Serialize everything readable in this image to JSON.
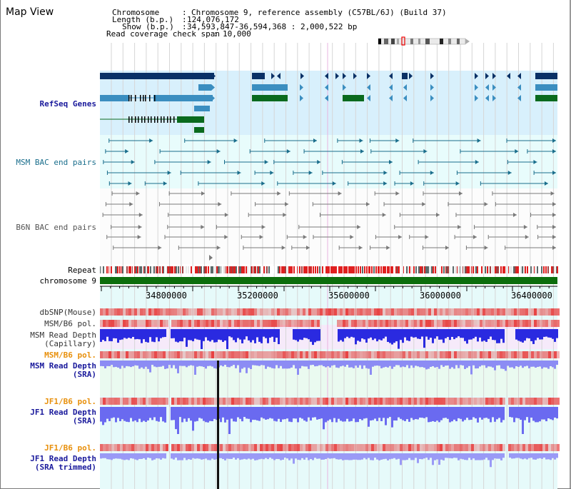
{
  "window": {
    "title": "Map View"
  },
  "info": {
    "chromosome_key": "Chromosome",
    "chromosome_val": "Chromosome 9, reference assembly (C57BL/6J) (Build 37)",
    "length_key": "Length (b.p.)",
    "length_val": "124,076,172",
    "show_key": "Show (b.p.)",
    "show_val": "34,593,847-36,594,368 : 2,000,522 bp",
    "span_key": "Read coverage check span",
    "span_val": "10,000"
  },
  "tracks": {
    "refseq": "RefSeq Genes",
    "msm_bac": "MSM BAC end pairs",
    "b6n_bac": "B6N BAC end pairs",
    "repeat": "Repeat",
    "chrom": "chromosome 9",
    "dbsnp": "dbSNP(Mouse)",
    "msm_b6_pol_1": "MSM/B6 pol.",
    "msm_depth_cap_1": "MSM Read Depth",
    "msm_depth_cap_2": "(Capillary)",
    "msm_b6_pol_2": "MSM/B6 pol.",
    "msm_depth_sra_1": "MSM Read Depth",
    "msm_depth_sra_2": "(SRA)",
    "jf1_b6_pol_1": "JF1/B6 pol.",
    "jf1_depth_sra_1": "JF1 Read Depth",
    "jf1_depth_sra_2": "(SRA)",
    "jf1_b6_pol_2": "JF1/B6 pol.",
    "jf1_depth_trim_1": "JF1 Read Depth",
    "jf1_depth_trim_2": "(SRA trimmed)"
  },
  "ruler": {
    "ticks": [
      "34800000",
      "35200000",
      "35600000",
      "36000000",
      "36400000"
    ]
  },
  "colors": {
    "refseq_bg": "#d8f0fc",
    "msm_bg": "#e8fcfc",
    "b6n_bg": "#fcfcfc",
    "refseq_dark": "#0a3166",
    "refseq_mid": "#3b8ec0",
    "refseq_green": "#0a6a1e",
    "bac_teal": "#1a6e8c",
    "bac_grey": "#7a7a7a",
    "chrom_green": "#0c6d0c",
    "depth_blue": "#2a2ae0",
    "depth_light": "#8c8cf4",
    "pol_red": "#e83838",
    "pol_label_orange": "#e8900c",
    "label_navy": "#1a1a9c"
  }
}
